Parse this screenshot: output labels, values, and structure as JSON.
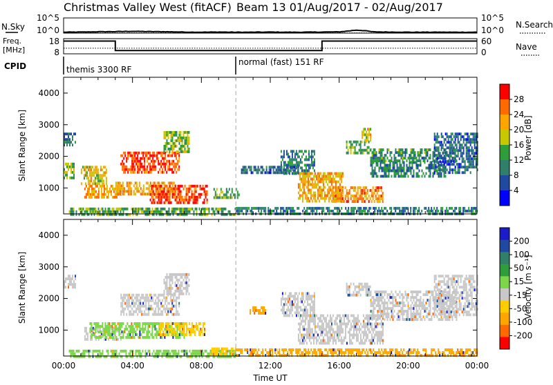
{
  "header": {
    "title": "Christmas Valley West (fitACF)",
    "subtitle": "Beam 13 01/Aug/2017 - 02/Aug/2017"
  },
  "panels": {
    "nsky": {
      "left_label": "N.Sky",
      "right_label": "N.Search",
      "left_ticks": [
        "10^5",
        "10^0"
      ],
      "right_ticks": [
        "10^5",
        "10^0"
      ]
    },
    "freq": {
      "left_label_1": "Freq.",
      "left_label_2": "[MHz]",
      "right_label": "Nave",
      "left_ticks": [
        "18",
        "8"
      ],
      "right_ticks": [
        "60",
        "0"
      ]
    },
    "cpid": {
      "label": "CPID",
      "modes": [
        {
          "name": "themis 3300 RF",
          "start_hour": 0
        },
        {
          "name": "normal (fast) 151 RF",
          "start_hour": 10
        }
      ]
    }
  },
  "time_axis": {
    "label": "Time UT",
    "ticks": [
      "00:00",
      "04:00",
      "08:00",
      "12:00",
      "16:00",
      "20:00",
      "00:00"
    ],
    "range_hours": [
      0,
      24
    ],
    "marker_hour": 10
  },
  "range_axis": {
    "label": "Slant Range [km]",
    "ticks": [
      "1000",
      "2000",
      "3000",
      "4000"
    ],
    "range_km": [
      180,
      4500
    ]
  },
  "colorbars": {
    "power": {
      "label": "Power [dB]",
      "ticks": [
        "4",
        "8",
        "12",
        "16",
        "20",
        "24",
        "28"
      ],
      "colors": [
        "#0000ff",
        "#1f4aa0",
        "#2f7f6a",
        "#2e9d3a",
        "#c8c800",
        "#ffa500",
        "#ff6a00",
        "#ff0000"
      ]
    },
    "velocity": {
      "label": "Velocity [m s⁻¹]",
      "ticks": [
        "200",
        "100",
        "50",
        "15",
        "-15",
        "-50",
        "-100",
        "-200"
      ],
      "colors": [
        "#1b1bc8",
        "#1f4aa0",
        "#2f7f6a",
        "#2e9d3a",
        "#7dd64a",
        "#c8c8c8",
        "#ffcc00",
        "#ffa500",
        "#ff6a00",
        "#ff0000"
      ]
    }
  },
  "chart_data": [
    {
      "type": "line",
      "name": "nsky-nsearch",
      "x_hours": [
        0,
        1,
        2,
        3,
        4,
        5,
        6,
        7,
        8,
        9,
        10,
        11,
        12,
        13,
        14,
        15,
        16,
        17,
        17.5,
        18,
        19,
        20,
        21,
        22,
        23,
        24
      ],
      "nsky_log": [
        0.3,
        0.35,
        0.45,
        0.5,
        0.6,
        0.5,
        0.45,
        0.35,
        0.3,
        0.35,
        0.3,
        0.3,
        0.35,
        0.3,
        0.3,
        0.35,
        0.4,
        1.0,
        0.8,
        0.4,
        0.35,
        0.3,
        0.3,
        0.3,
        0.3,
        0.3
      ],
      "ylim_log": [
        0,
        5
      ]
    },
    {
      "type": "line",
      "name": "frequency",
      "x_hours": [
        0,
        3,
        3,
        15,
        15,
        24
      ],
      "freq_mhz": [
        16.4,
        16.4,
        10.2,
        10.2,
        16.4,
        16.4
      ],
      "nave": [
        22,
        22,
        22,
        22,
        22,
        22
      ],
      "ylim_mhz": [
        8,
        18
      ],
      "ylim_nave": [
        0,
        60
      ]
    },
    {
      "type": "heatmap",
      "name": "power",
      "x_range_hours": [
        0,
        24
      ],
      "y_range_km": [
        180,
        4500
      ],
      "units": "dB",
      "blobs": [
        {
          "t0": 0.0,
          "t1": 0.7,
          "r0": 2400,
          "r1": 2750,
          "level": 8
        },
        {
          "t0": 0.0,
          "t1": 0.6,
          "r0": 1300,
          "r1": 1800,
          "level": 16
        },
        {
          "t0": 1.0,
          "t1": 2.5,
          "r0": 1150,
          "r1": 1700,
          "level": 20
        },
        {
          "t0": 1.2,
          "t1": 3.3,
          "r0": 700,
          "r1": 1100,
          "level": 22
        },
        {
          "t0": 3.3,
          "t1": 6.7,
          "r0": 1500,
          "r1": 2150,
          "level": 28
        },
        {
          "t0": 3.0,
          "t1": 6.5,
          "r0": 850,
          "r1": 1200,
          "level": 22
        },
        {
          "t0": 5.0,
          "t1": 8.3,
          "r0": 550,
          "r1": 1100,
          "level": 28
        },
        {
          "t0": 5.8,
          "t1": 7.3,
          "r0": 2150,
          "r1": 2800,
          "level": 16
        },
        {
          "t0": 0.3,
          "t1": 10.0,
          "r0": 200,
          "r1": 380,
          "level": 14
        },
        {
          "t0": 8.7,
          "t1": 10.2,
          "r0": 700,
          "r1": 1000,
          "level": 14
        },
        {
          "t0": 10.0,
          "t1": 24.0,
          "r0": 200,
          "r1": 400,
          "level": 10
        },
        {
          "t0": 12.6,
          "t1": 14.6,
          "r0": 1500,
          "r1": 2200,
          "level": 10
        },
        {
          "t0": 13.6,
          "t1": 16.2,
          "r0": 600,
          "r1": 1500,
          "level": 22
        },
        {
          "t0": 15.6,
          "t1": 18.5,
          "r0": 550,
          "r1": 1050,
          "level": 24
        },
        {
          "t0": 16.4,
          "t1": 17.8,
          "r0": 2100,
          "r1": 2500,
          "level": 14
        },
        {
          "t0": 17.3,
          "t1": 17.8,
          "r0": 2500,
          "r1": 2900,
          "level": 20
        },
        {
          "t0": 17.8,
          "t1": 22.2,
          "r0": 1350,
          "r1": 1850,
          "level": 10
        },
        {
          "t0": 17.8,
          "t1": 22.8,
          "r0": 1850,
          "r1": 2250,
          "level": 12
        },
        {
          "t0": 21.5,
          "t1": 24.0,
          "r0": 1500,
          "r1": 2750,
          "level": 8
        },
        {
          "t0": 10.3,
          "t1": 13.6,
          "r0": 1500,
          "r1": 1700,
          "level": 8
        }
      ]
    },
    {
      "type": "heatmap",
      "name": "velocity",
      "x_range_hours": [
        0,
        24
      ],
      "y_range_km": [
        180,
        4500
      ],
      "units": "m/s",
      "blobs": [
        {
          "t0": 0.0,
          "t1": 0.7,
          "r0": 2400,
          "r1": 2750,
          "level": 0
        },
        {
          "t0": 1.2,
          "t1": 3.3,
          "r0": 700,
          "r1": 1100,
          "level": 0
        },
        {
          "t0": 3.3,
          "t1": 6.7,
          "r0": 1500,
          "r1": 2150,
          "level": 0
        },
        {
          "t0": 1.5,
          "t1": 7.0,
          "r0": 800,
          "r1": 1250,
          "level": 30
        },
        {
          "t0": 5.5,
          "t1": 8.2,
          "r0": 850,
          "r1": 1250,
          "level": -40
        },
        {
          "t0": 5.8,
          "t1": 7.3,
          "r0": 2150,
          "r1": 2800,
          "level": 0
        },
        {
          "t0": 0.3,
          "t1": 10.0,
          "r0": 200,
          "r1": 380,
          "level": 20
        },
        {
          "t0": 8.5,
          "t1": 10.0,
          "r0": 200,
          "r1": 450,
          "level": -40
        },
        {
          "t0": 10.0,
          "t1": 24.0,
          "r0": 200,
          "r1": 420,
          "level": -60
        },
        {
          "t0": 10.8,
          "t1": 11.7,
          "r0": 1500,
          "r1": 1750,
          "level": -60
        },
        {
          "t0": 13.6,
          "t1": 18.5,
          "r0": 550,
          "r1": 1500,
          "level": 0
        },
        {
          "t0": 12.6,
          "t1": 14.6,
          "r0": 1500,
          "r1": 2200,
          "level": 0
        },
        {
          "t0": 16.4,
          "t1": 17.8,
          "r0": 2100,
          "r1": 2500,
          "level": 0
        },
        {
          "t0": 17.8,
          "t1": 22.8,
          "r0": 1350,
          "r1": 2250,
          "level": 0
        },
        {
          "t0": 21.5,
          "t1": 24.0,
          "r0": 1500,
          "r1": 2750,
          "level": 0
        }
      ]
    }
  ]
}
